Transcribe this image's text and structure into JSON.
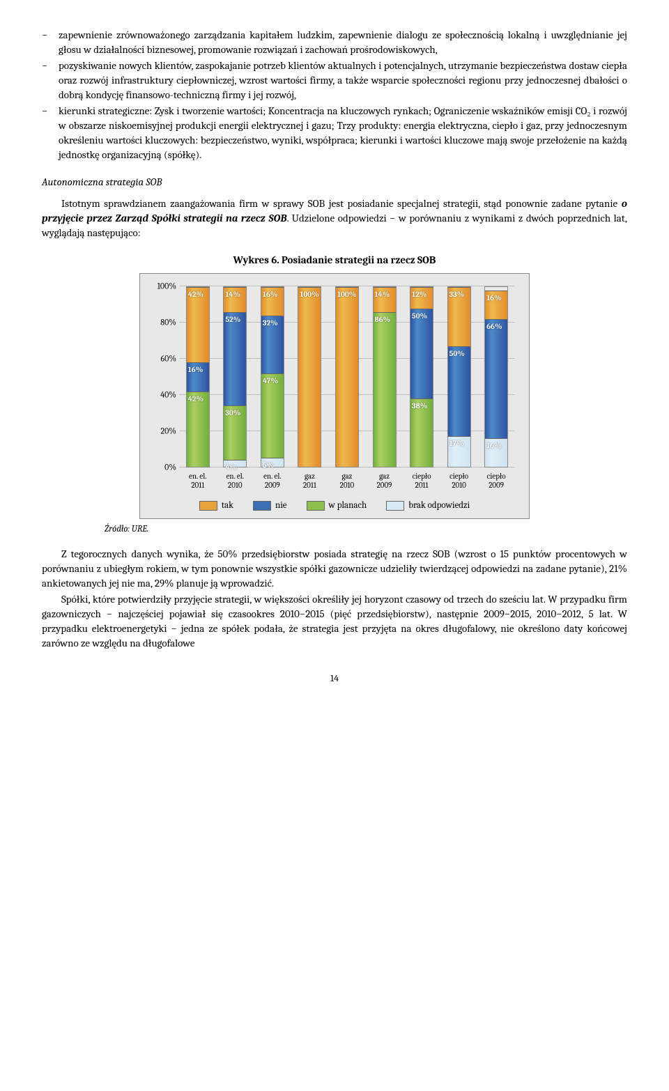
{
  "bullets": [
    "zapewnienie zrównoważonego zarządzania kapitałem ludzkim, zapewnienie dialogu ze społecznością lokalną i uwzględnianie jej głosu w działalności biznesowej, promowanie rozwiązań i zachowań prośrodowiskowych,",
    "pozyskiwanie nowych klientów, zaspokajanie potrzeb klientów aktualnych i potencjalnych, utrzymanie bezpieczeństwa dostaw ciepła oraz rozwój infrastruktury ciepłowniczej, wzrost wartości firmy, a także wsparcie społeczności regionu przy jednoczesnej dbałości o dobrą kondycję finansowo-techniczną firmy i jej rozwój,",
    "kierunki strategiczne: Zysk i tworzenie wartości; Koncentracja na kluczowych rynkach; Ograniczenie wskaźników emisji CO₂ i rozwój w obszarze niskoemisyjnej produkcji energii elektrycznej i gazu; Trzy produkty: energia elektryczna, ciepło i gaz, przy jednoczesnym określeniu wartości kluczowych: bezpieczeństwo, wyniki, współpraca; kierunki i wartości kluczowe mają swoje przełożenie na każdą jednostkę organizacyjną (spółkę)."
  ],
  "section_heading": "Autonomiczna strategia SOB",
  "intro_para_pre": "Istotnym sprawdzianem zaangażowania firm w sprawy SOB jest posiadanie specjalnej strategii, stąd ponownie zadane pytanie ",
  "intro_para_bold": "o przyjęcie przez Zarząd Spółki strategii na rzecz SOB",
  "intro_para_post": ". Udzielone odpowiedzi − w porównaniu z wynikami z dwóch poprzednich lat, wyglądają następująco:",
  "chart": {
    "title": "Wykres 6. Posiadanie strategii na rzecz SOB",
    "y_ticks": [
      "0%",
      "20%",
      "40%",
      "60%",
      "80%",
      "100%"
    ],
    "categories": [
      "en. el. 2011",
      "en. el. 2010",
      "en. el. 2009",
      "gaz 2011",
      "gaz 2010",
      "gaz 2009",
      "ciepło 2011",
      "ciepło 2010",
      "ciepło 2009"
    ],
    "colors": {
      "tak": "#e8a33d",
      "nie": "#3d6fb5",
      "w_planach": "#8fbf4f",
      "brak": "#d7e9f4",
      "grid": "#bbbbbb",
      "bg": "#e8e8e8"
    },
    "series_order": [
      "tak",
      "nie",
      "w_planach",
      "brak"
    ],
    "labels_on_bars": {
      "0": {
        "tak": "42%",
        "nie": "16%",
        "w_planach": "42%"
      },
      "1": {
        "tak": "14%",
        "nie": "52%",
        "w_planach": "30%",
        "brak": "4%"
      },
      "2": {
        "tak": "16%",
        "nie": "32%",
        "w_planach": "47%",
        "brak": "5%"
      },
      "3": {
        "tak": "100%"
      },
      "4": {
        "tak": "100%"
      },
      "5": {
        "tak": "14%",
        "w_planach": "86%"
      },
      "6": {
        "tak": "12%",
        "nie": "50%",
        "w_planach": "38%"
      },
      "7": {
        "tak": "33%",
        "nie": "50%",
        "brak": "17%"
      },
      "8": {
        "tak": "16%",
        "nie": "66%",
        "brak": "16%"
      }
    },
    "data": [
      {
        "tak": 42,
        "nie": 16,
        "w_planach": 42,
        "brak": 0
      },
      {
        "tak": 14,
        "nie": 52,
        "w_planach": 30,
        "brak": 4
      },
      {
        "tak": 16,
        "nie": 32,
        "w_planach": 47,
        "brak": 5
      },
      {
        "tak": 100,
        "nie": 0,
        "w_planach": 0,
        "brak": 0
      },
      {
        "tak": 100,
        "nie": 0,
        "w_planach": 0,
        "brak": 0
      },
      {
        "tak": 14,
        "nie": 0,
        "w_planach": 86,
        "brak": 0
      },
      {
        "tak": 12,
        "nie": 50,
        "w_planach": 38,
        "brak": 0
      },
      {
        "tak": 33,
        "nie": 50,
        "w_planach": 0,
        "brak": 17
      },
      {
        "tak": 16,
        "nie": 66,
        "w_planach": 0,
        "brak": 16
      }
    ],
    "legend": {
      "tak": "tak",
      "nie": "nie",
      "w_planach": "w planach",
      "brak": "brak odpowiedzi"
    }
  },
  "source": "Źródło: URE.",
  "para2": "Z tegorocznych danych wynika, że 50% przedsiębiorstw posiada strategię na rzecz SOB (wzrost o 15 punktów procentowych w porównaniu z ubiegłym rokiem, w tym ponownie wszystkie spółki gazownicze udzieliły twierdzącej odpowiedzi na zadane pytanie), 21% ankietowanych jej nie ma, 29% planuje ją wprowadzić.",
  "para3": "Spółki, które potwierdziły przyjęcie strategii, w większości określiły jej horyzont czasowy od trzech do sześciu lat. W przypadku firm gazowniczych − najczęściej pojawiał się czasookres 2010−2015 (pięć przedsiębiorstw), następnie 2009−2015, 2010−2012, 5 lat. W przypadku elektroenergetyki − jedna ze spółek podała, że strategia jest przyjęta na okres długofalowy, nie określono daty końcowej zarówno ze względu na długofalowe",
  "page_number": "14"
}
